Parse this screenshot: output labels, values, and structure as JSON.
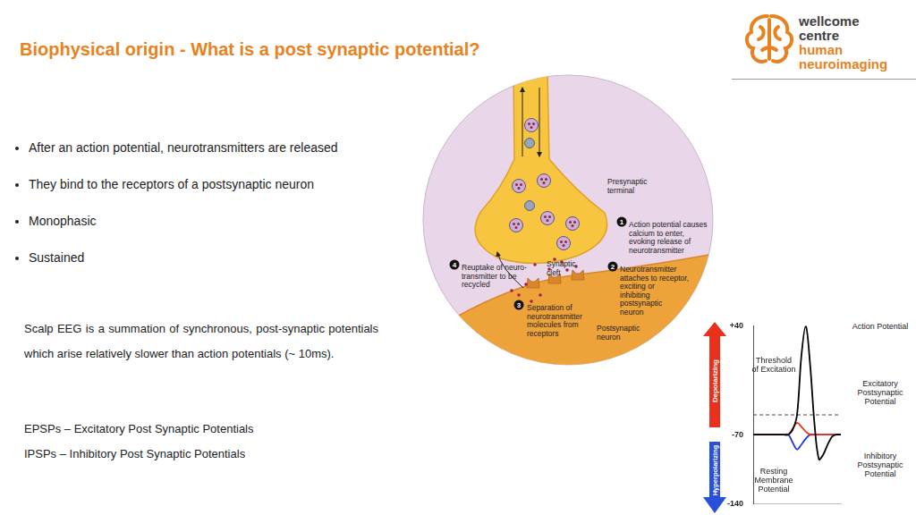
{
  "header": {
    "title": "Biophysical origin - What is a post synaptic potential?",
    "logo": [
      "wellcome",
      "centre",
      "human",
      "neuroimaging"
    ]
  },
  "bullets": [
    "After an action potential, neurotransmitters are released",
    "They bind to the receptors of a postsynaptic neuron",
    "Monophasic",
    "Sustained"
  ],
  "paragraph": "Scalp EEG is a summation of synchronous, post-synaptic potentials which arise relatively slower than action potentials (~ 10ms).",
  "definitions": [
    "EPSPs – Excitatory Post Synaptic Potentials",
    "IPSPs – Inhibitory Post Synaptic Potentials"
  ],
  "diagram": {
    "labels": [
      {
        "lines": [
          "Presynaptic",
          "terminal"
        ]
      },
      {
        "number": 1,
        "lines": [
          "Action potential causes",
          "calcium to enter,",
          "evoking release of",
          "neurotransmitter"
        ]
      },
      {
        "number": 2,
        "lines": [
          "Neurotransmitter",
          "attaches to receptor,",
          "exciting or",
          "inhibiting",
          "postsynaptic",
          "neuron"
        ]
      },
      {
        "number": 3,
        "lines": [
          "Separation of",
          "neurotransmitter",
          "molecules from",
          "receptors"
        ]
      },
      {
        "number": 4,
        "lines": [
          "Reuptake of neuro-",
          "transmitter to be",
          "recycled"
        ]
      },
      {
        "lines": [
          "Synaptic",
          "cleft"
        ]
      },
      {
        "lines": [
          "Postsynaptic",
          "neuron"
        ]
      }
    ]
  },
  "chart_data": {
    "type": "line",
    "categories": [
      null,
      null,
      null,
      null,
      null,
      null,
      null,
      null,
      null,
      null,
      null,
      null,
      null,
      null,
      null,
      null,
      null,
      null,
      null,
      null,
      null
    ],
    "series": [
      {
        "name": "Action Potential",
        "color": "#000000",
        "values": [
          -70,
          -70,
          -70,
          -70,
          -70,
          -70,
          -70,
          -70,
          -70,
          -65,
          -50,
          10,
          40,
          0,
          -60,
          -95,
          -90,
          -80,
          -72,
          -70,
          -70
        ]
      },
      {
        "name": "Excitatory Postsynaptic Potential",
        "color": "#e8301c",
        "values": [
          -70,
          -70,
          -70,
          -70,
          -70,
          -70,
          -70,
          -70,
          -70,
          -64,
          -58,
          -62,
          -67,
          -70,
          -70,
          -70,
          -70,
          -70,
          -70,
          -70,
          -70
        ]
      },
      {
        "name": "Inhibitory Postsynaptic Potential",
        "color": "#2233dd",
        "values": [
          -70,
          -70,
          -70,
          -70,
          -70,
          -70,
          -70,
          -70,
          -70,
          -78,
          -85,
          -80,
          -74,
          -70,
          -70,
          -70,
          -70,
          -70,
          -70,
          -70,
          -70
        ]
      },
      {
        "name": "Threshold of Excitation",
        "color": "#444444",
        "line_style": "dashed",
        "values": [
          -50,
          -50,
          -50,
          -50,
          -50,
          -50,
          -50,
          -50,
          -50,
          -50,
          -50,
          -50,
          -50,
          -50,
          -50,
          -50,
          -50,
          -50,
          -50,
          -50,
          -50
        ]
      }
    ],
    "ylim": [
      -140,
      40
    ],
    "yticks": [
      {
        "value": 40,
        "label": "+40"
      },
      -70,
      -140
    ],
    "grid": false,
    "tick_labels": "y",
    "annotations": [
      "Resting Membrane Potential",
      "Depolarizing",
      "Hyperpolarizing"
    ]
  }
}
